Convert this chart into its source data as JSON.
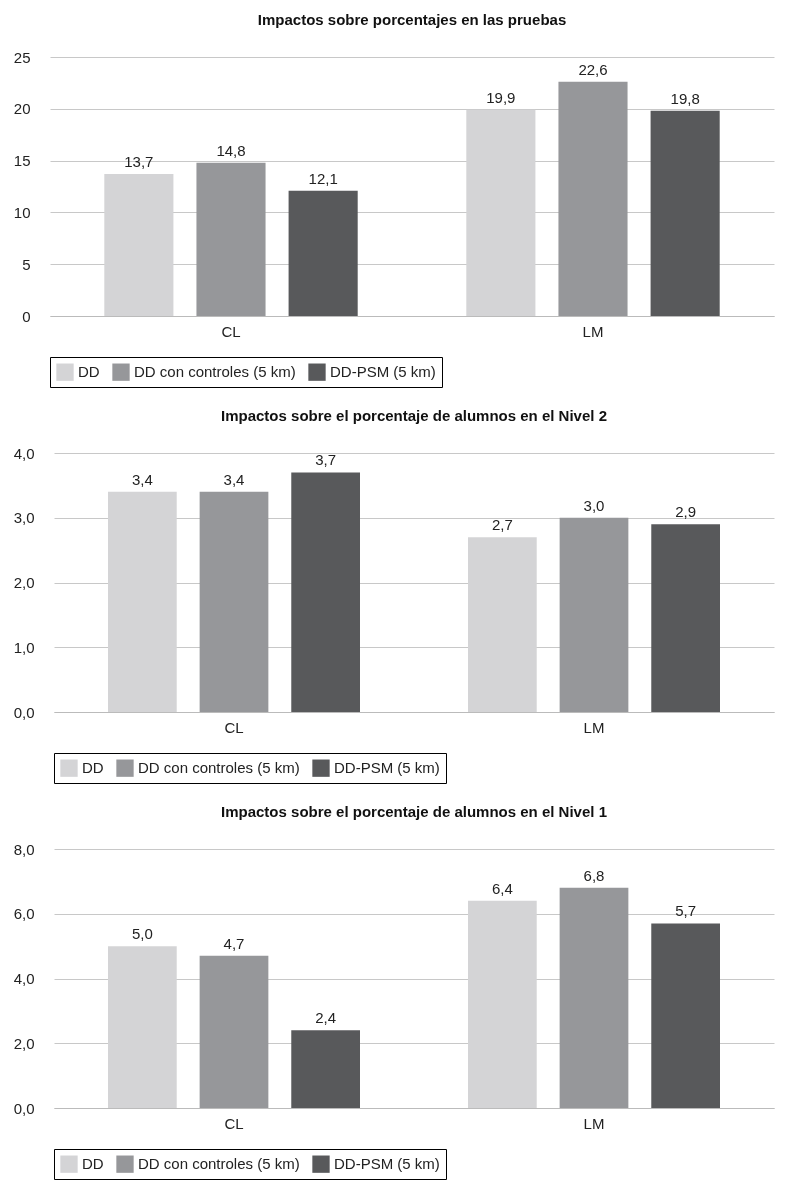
{
  "chart_data": [
    {
      "type": "bar",
      "title": "Impactos sobre porcentajes en las pruebas",
      "categories": [
        "CL",
        "LM"
      ],
      "series": [
        {
          "name": "DD",
          "color": "#d4d4d6",
          "values": [
            13.7,
            19.9
          ],
          "value_labels": [
            "13,7",
            "19,9"
          ]
        },
        {
          "name": "DD con controles (5 km)",
          "color": "#96979a",
          "values": [
            14.8,
            22.6
          ],
          "value_labels": [
            "14,8",
            "22,6"
          ]
        },
        {
          "name": "DD-PSM (5 km)",
          "color": "#58595b",
          "values": [
            12.1,
            19.8
          ],
          "value_labels": [
            "12,1",
            "19,8"
          ]
        }
      ],
      "ylim": [
        0,
        25
      ],
      "yticks": [
        0,
        5,
        10,
        15,
        20,
        25
      ],
      "grid": "y",
      "legend": "bottom"
    },
    {
      "type": "bar",
      "title": "Impactos sobre el porcentaje de alumnos en el Nivel 2",
      "categories": [
        "CL",
        "LM"
      ],
      "series": [
        {
          "name": "DD",
          "color": "#d4d4d6",
          "values": [
            3.4,
            2.7
          ],
          "value_labels": [
            "3,4",
            "2,7"
          ]
        },
        {
          "name": "DD con controles (5 km)",
          "color": "#96979a",
          "values": [
            3.4,
            3.0
          ],
          "value_labels": [
            "3,4",
            "3,0"
          ]
        },
        {
          "name": "DD-PSM (5 km)",
          "color": "#58595b",
          "values": [
            3.7,
            2.9
          ],
          "value_labels": [
            "3,7",
            "2,9"
          ]
        }
      ],
      "ylim": [
        0,
        4
      ],
      "yticks": [
        {
          "value": 0,
          "label": "0,0"
        },
        {
          "value": 1,
          "label": "1,0"
        },
        {
          "value": 2,
          "label": "2,0"
        },
        {
          "value": 3,
          "label": "3,0"
        },
        {
          "value": 4,
          "label": "4,0"
        }
      ],
      "grid": "y",
      "legend": "bottom"
    },
    {
      "type": "bar",
      "title": "Impactos sobre el porcentaje de alumnos en el Nivel 1",
      "categories": [
        "CL",
        "LM"
      ],
      "series": [
        {
          "name": "DD",
          "color": "#d4d4d6",
          "values": [
            5.0,
            6.4
          ],
          "value_labels": [
            "5,0",
            "6,4"
          ]
        },
        {
          "name": "DD con controles (5 km)",
          "color": "#96979a",
          "values": [
            4.7,
            6.8
          ],
          "value_labels": [
            "4,7",
            "6,8"
          ]
        },
        {
          "name": "DD-PSM (5 km)",
          "color": "#58595b",
          "values": [
            2.4,
            5.7
          ],
          "value_labels": [
            "2,4",
            "5,7"
          ]
        }
      ],
      "ylim": [
        0,
        8
      ],
      "yticks": [
        {
          "value": 0,
          "label": "0,0"
        },
        {
          "value": 2,
          "label": "2,0"
        },
        {
          "value": 4,
          "label": "4,0"
        },
        {
          "value": 6,
          "label": "6,0"
        },
        {
          "value": 8,
          "label": "8,0"
        }
      ],
      "grid": "y",
      "legend": "bottom"
    }
  ]
}
